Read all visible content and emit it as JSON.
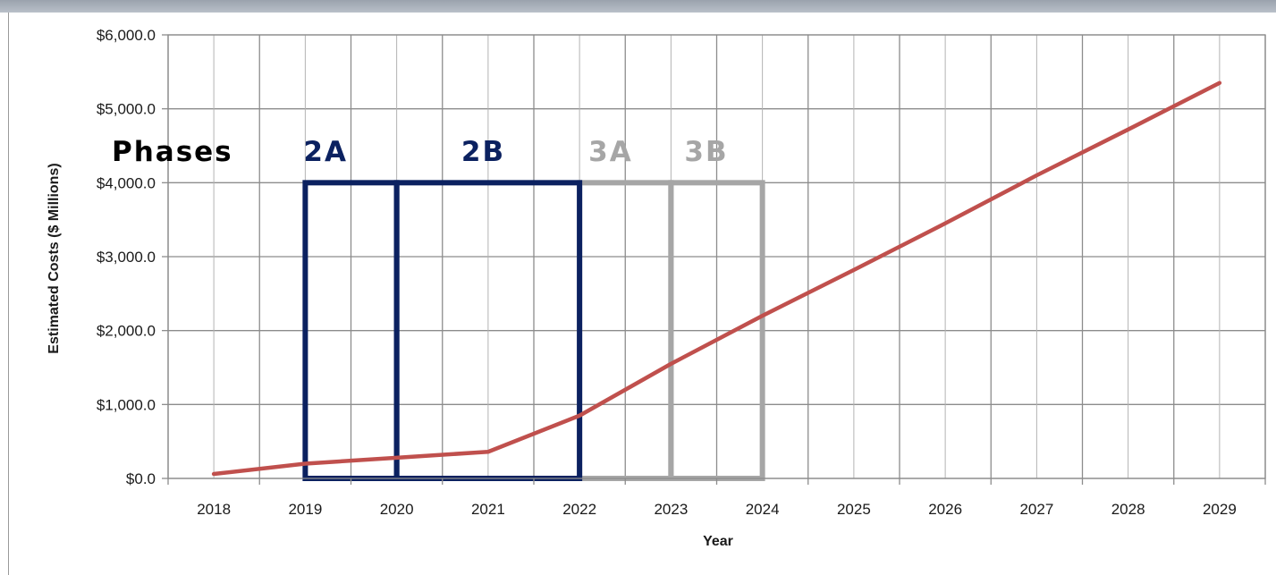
{
  "chart_data": {
    "type": "line",
    "xlabel": "Year",
    "ylabel": "Estimated Costs ($ Millions)",
    "x": [
      "2018",
      "2019",
      "2020",
      "2021",
      "2022",
      "2023",
      "2024",
      "2025",
      "2026",
      "2027",
      "2028",
      "2029"
    ],
    "series": [
      {
        "values": [
          60,
          200,
          280,
          360,
          850,
          1550,
          2200,
          2820,
          3450,
          4100,
          4720,
          5350
        ],
        "color": "#c0504d"
      }
    ],
    "ylim": [
      0,
      6000
    ],
    "y_ticks": [
      "$0.0",
      "$1,000.0",
      "$2,000.0",
      "$3,000.0",
      "$4,000.0",
      "$5,000.0",
      "$6,000.0"
    ],
    "grid": true,
    "annotations": {
      "title": "Phases",
      "phases": [
        {
          "label": "2A",
          "start": "2019",
          "end": "2020",
          "top": 4000,
          "color": "#0b2160"
        },
        {
          "label": "2B",
          "start": "2020",
          "end": "2022",
          "top": 4000,
          "color": "#0b2160"
        },
        {
          "label": "3A",
          "start": "2022",
          "end": "2023",
          "top": 4000,
          "color": "#a6a6a6"
        },
        {
          "label": "3B",
          "start": "2023",
          "end": "2024",
          "top": 4000,
          "color": "#a6a6a6"
        }
      ]
    }
  }
}
